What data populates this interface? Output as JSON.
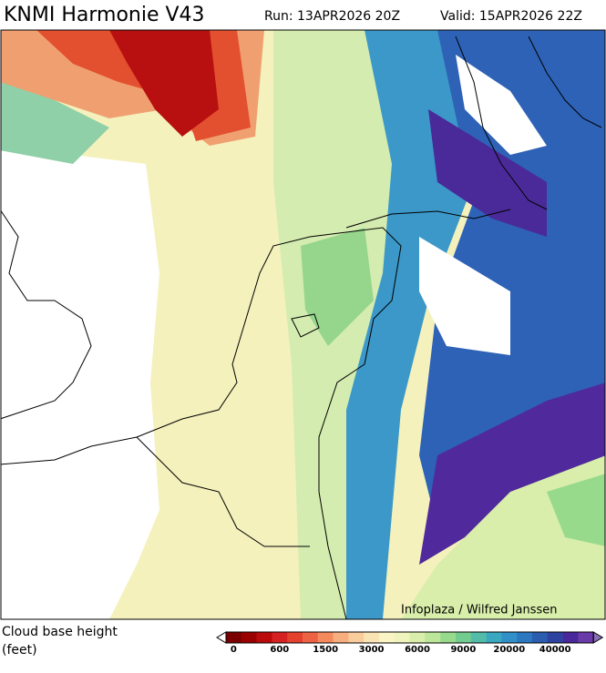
{
  "header": {
    "title": "KNMI Harmonie V43",
    "run": "Run: 13APR2026 20Z",
    "valid": "Valid: 15APR2026 22Z"
  },
  "map": {
    "credit": "Infoplaza / Wilfred Janssen"
  },
  "legend": {
    "title": [
      "Cloud base height",
      "(feet)"
    ],
    "colors": [
      "#7a0000",
      "#9a0000",
      "#bb0a0a",
      "#d42222",
      "#e4402e",
      "#ee6244",
      "#f48a5c",
      "#f7ae7e",
      "#f9cc9c",
      "#fbe4b4",
      "#fbf4c4",
      "#eef4bc",
      "#d8eeaa",
      "#bce69a",
      "#98da8c",
      "#72cc90",
      "#52bca8",
      "#3aa8c0",
      "#3190c8",
      "#2c78c0",
      "#2a5cb0",
      "#2e42a0",
      "#48289a",
      "#6a3aa8"
    ],
    "ticks": [
      0,
      600,
      1500,
      3000,
      6000,
      9000,
      20000,
      40000
    ]
  }
}
